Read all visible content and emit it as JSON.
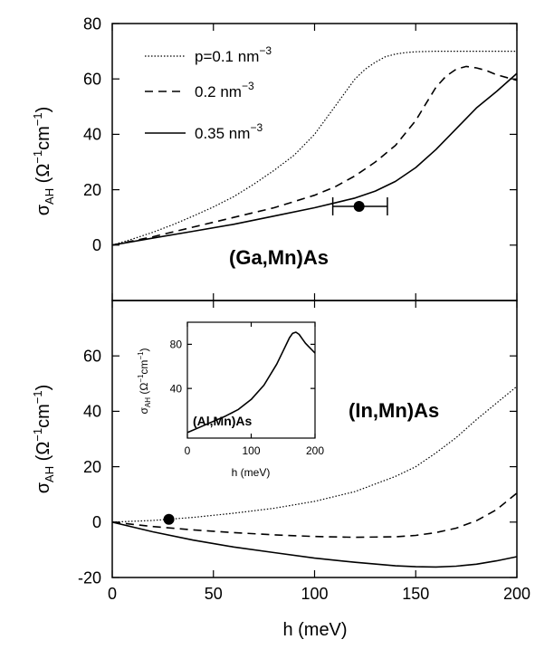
{
  "chart_data": [
    {
      "type": "line",
      "xlabel": "",
      "ylabel": "σ_AH (Ω⁻¹cm⁻¹)",
      "xlim": [
        0,
        200
      ],
      "ylim": [
        -20,
        80
      ],
      "y_ticks": [
        0,
        20,
        40,
        60,
        80
      ],
      "x_tick_labels": [
        "",
        "",
        "",
        "",
        ""
      ],
      "annotation": "(Ga,Mn)As",
      "legend_placement": "top-left",
      "series": [
        {
          "name": "p=0.1 nm⁻³",
          "style": "dotted",
          "x": [
            0,
            10,
            20,
            30,
            40,
            50,
            60,
            70,
            80,
            90,
            100,
            105,
            110,
            115,
            120,
            125,
            130,
            135,
            140,
            145,
            150,
            160,
            170,
            180,
            190,
            200
          ],
          "y": [
            0,
            2.2,
            4.6,
            7.4,
            10.5,
            13.8,
            17.5,
            22,
            27,
            32.5,
            40,
            45,
            50,
            55,
            60,
            63.5,
            66,
            68,
            69,
            69.5,
            69.8,
            70,
            70,
            70,
            70,
            70
          ]
        },
        {
          "name": "0.2 nm⁻³",
          "style": "dashed",
          "x": [
            0,
            20,
            40,
            60,
            80,
            100,
            110,
            120,
            130,
            140,
            150,
            155,
            160,
            165,
            170,
            175,
            180,
            185,
            190,
            195,
            200
          ],
          "y": [
            0,
            3,
            6.5,
            10,
            13.5,
            18,
            21,
            25,
            30,
            36,
            45,
            51,
            57,
            61,
            63.5,
            64.5,
            64,
            63,
            61.5,
            60.5,
            59.5
          ]
        },
        {
          "name": "0.35 nm⁻³",
          "style": "solid",
          "x": [
            0,
            20,
            40,
            60,
            80,
            100,
            120,
            130,
            140,
            150,
            160,
            170,
            180,
            190,
            200
          ],
          "y": [
            0,
            2.5,
            5,
            7.5,
            10.5,
            13.5,
            17,
            19.5,
            23,
            28,
            34.5,
            42,
            49.5,
            55.5,
            62
          ]
        }
      ],
      "points": [
        {
          "x": 122,
          "y": 14,
          "xerr_low": 109,
          "xerr_high": 136
        }
      ]
    },
    {
      "type": "line",
      "xlabel": "h (meV)",
      "ylabel": "σ_AH (Ω⁻¹cm⁻¹)",
      "xlim": [
        0,
        200
      ],
      "ylim": [
        -20,
        80
      ],
      "y_ticks": [
        -20,
        0,
        20,
        40,
        60
      ],
      "x_ticks": [
        0,
        50,
        100,
        150,
        200
      ],
      "annotation": "(In,Mn)As",
      "series": [
        {
          "style": "dotted",
          "x": [
            0,
            20,
            40,
            60,
            80,
            100,
            120,
            140,
            150,
            160,
            170,
            180,
            190,
            200
          ],
          "y": [
            0,
            0.6,
            1.7,
            3.2,
            5,
            7.5,
            11,
            16.5,
            20,
            25,
            30.5,
            37,
            43,
            49
          ]
        },
        {
          "style": "dashed",
          "x": [
            0,
            20,
            40,
            60,
            80,
            100,
            120,
            140,
            150,
            160,
            170,
            180,
            190,
            200
          ],
          "y": [
            0,
            -1.6,
            -2.8,
            -3.8,
            -4.6,
            -5.2,
            -5.5,
            -5.3,
            -4.8,
            -3.8,
            -2.2,
            0.5,
            4.5,
            10.5
          ]
        },
        {
          "style": "solid",
          "x": [
            0,
            20,
            40,
            60,
            80,
            100,
            120,
            140,
            150,
            160,
            170,
            180,
            190,
            200
          ],
          "y": [
            0,
            -3.5,
            -6.5,
            -9,
            -11,
            -13,
            -14.5,
            -15.8,
            -16.1,
            -16.2,
            -15.9,
            -15.2,
            -14,
            -12.5
          ]
        }
      ],
      "points": [
        {
          "x": 28,
          "y": 1
        }
      ]
    },
    {
      "type": "line",
      "xlabel": "h (meV)",
      "ylabel": "σ_AH (Ω⁻¹cm⁻¹)",
      "xlim": [
        0,
        200
      ],
      "ylim": [
        -5,
        100
      ],
      "y_ticks": [
        40,
        80
      ],
      "x_ticks": [
        0,
        100,
        200
      ],
      "annotation": "(Al,Mn)As",
      "series": [
        {
          "style": "solid",
          "x": [
            0,
            20,
            40,
            60,
            80,
            100,
            120,
            140,
            150,
            160,
            165,
            170,
            175,
            180,
            185,
            190,
            195,
            200
          ],
          "y": [
            0,
            5,
            10,
            15,
            21,
            30,
            43,
            62,
            74,
            86,
            90,
            91,
            89,
            85,
            81,
            78,
            75,
            72
          ]
        }
      ]
    }
  ]
}
